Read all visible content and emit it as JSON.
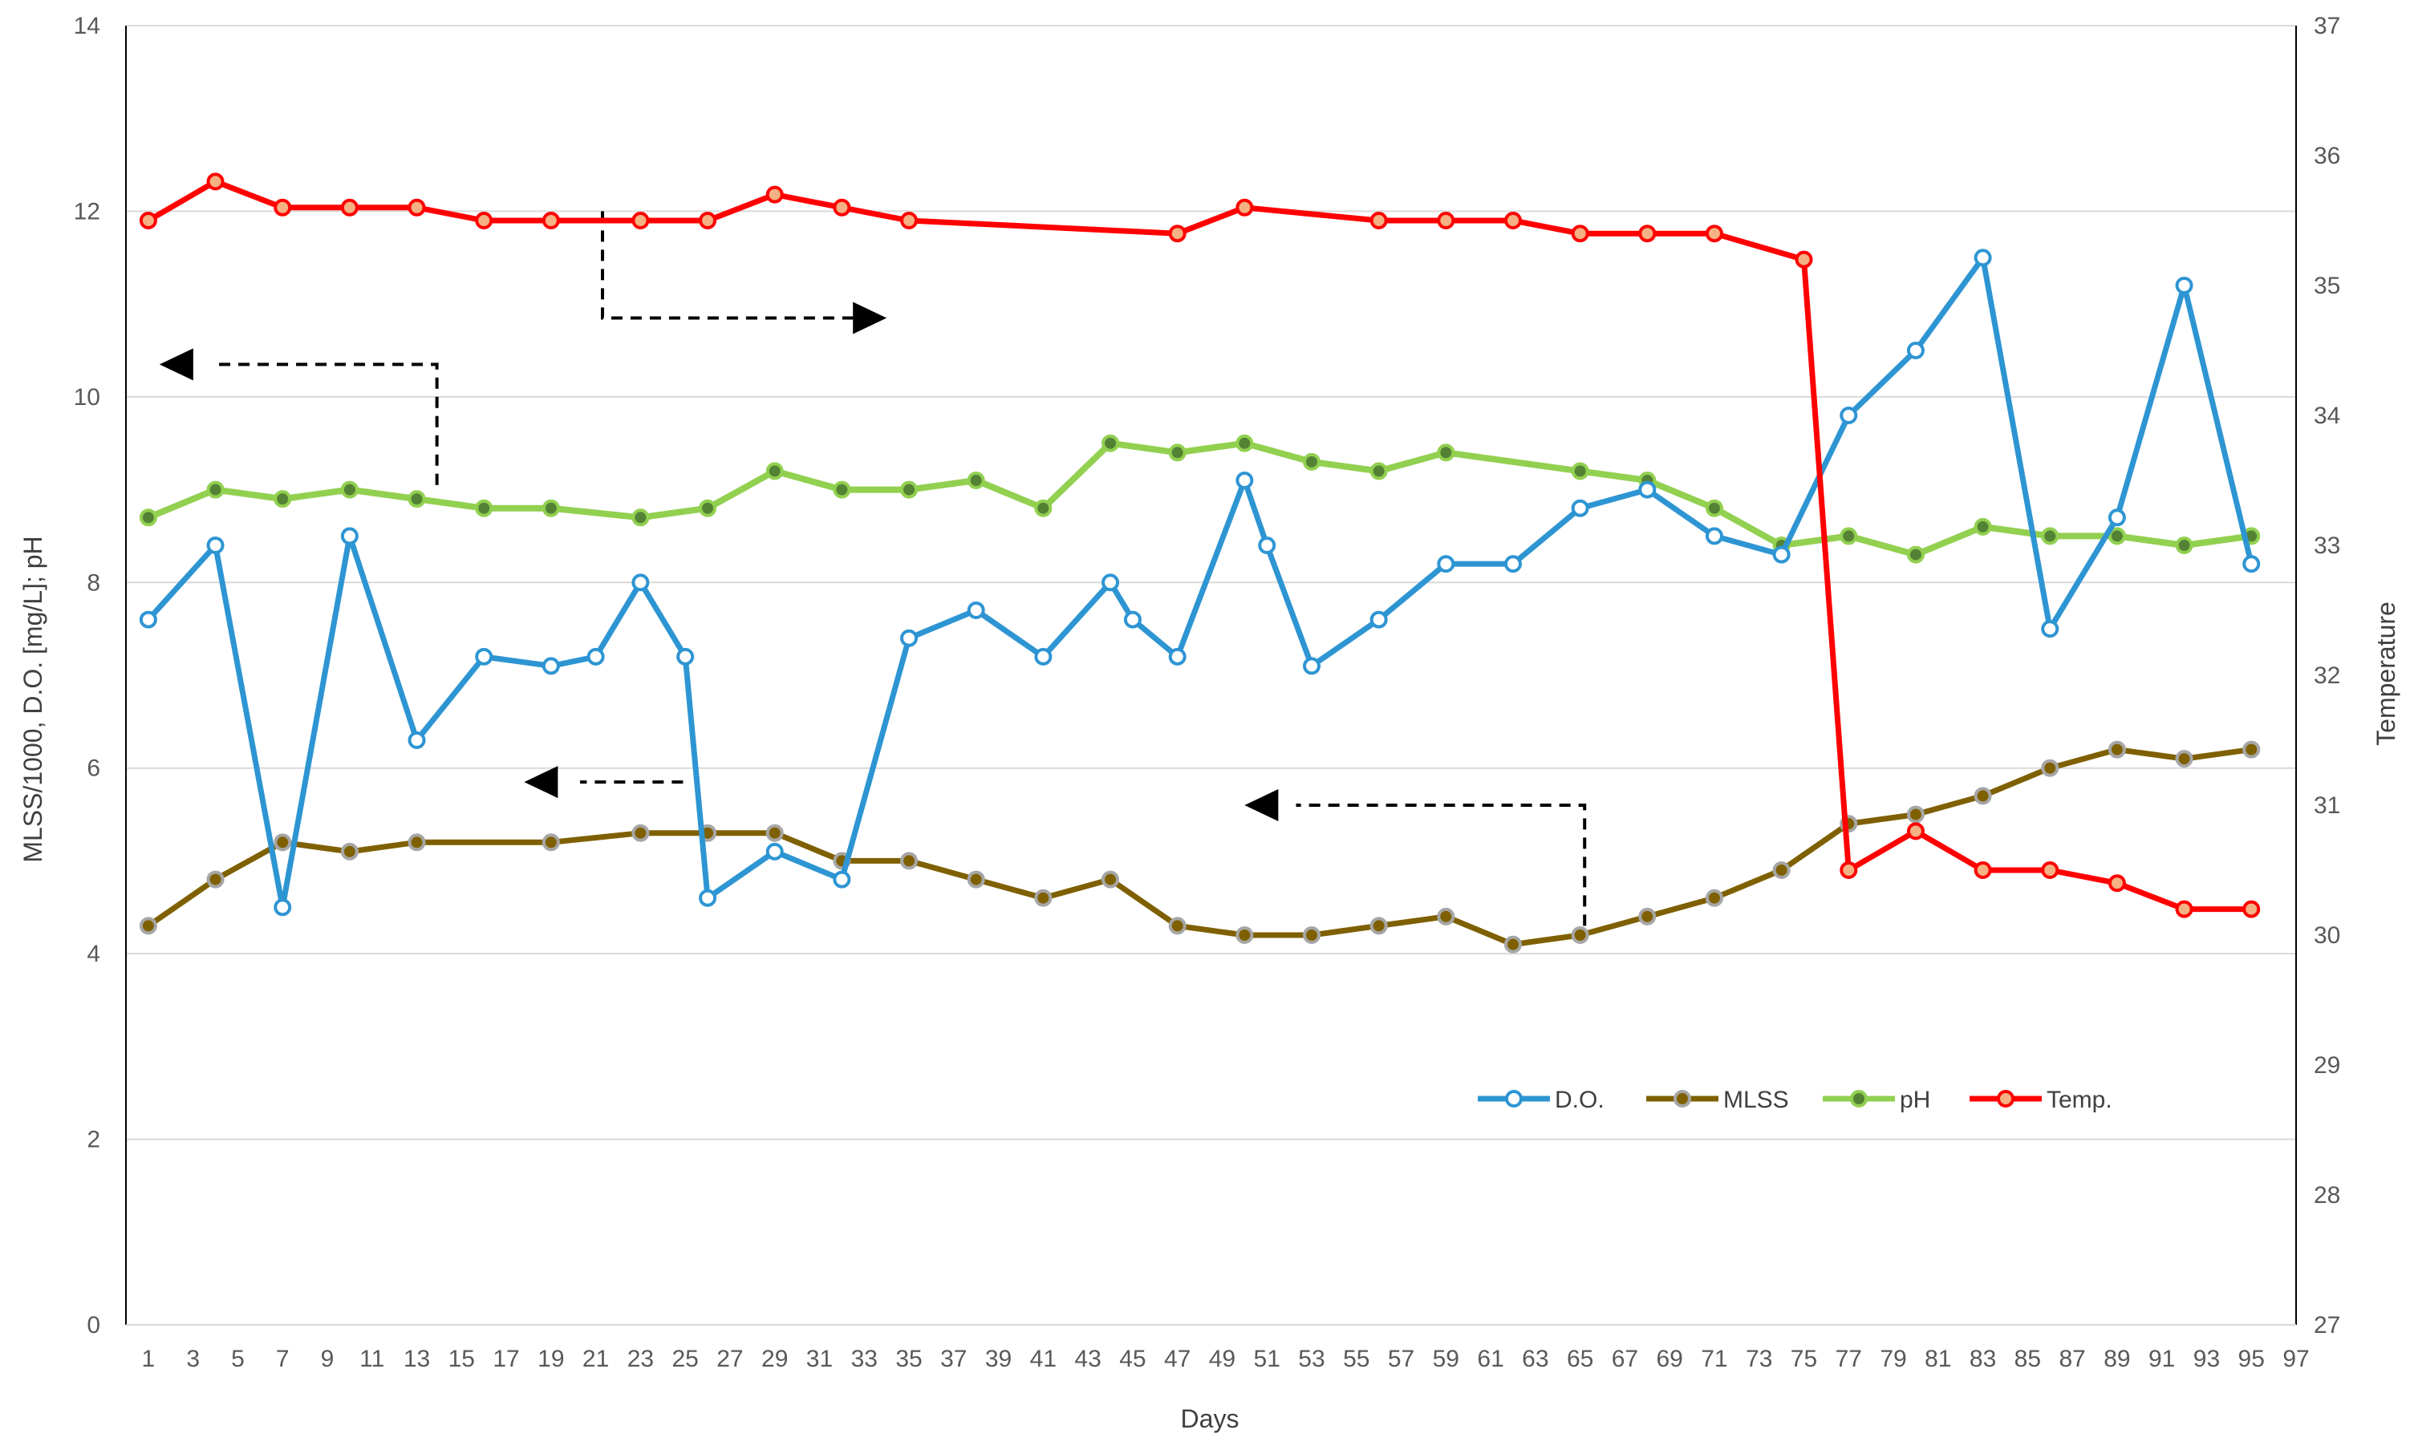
{
  "chart_data": {
    "type": "line",
    "title": "",
    "xlabel": "Days",
    "ylabel_left": "MLSS/1000, D.O. [mg/L]; pH",
    "ylabel_right": "Temperature",
    "xlim": [
      0,
      97
    ],
    "x_ticks": [
      1,
      3,
      5,
      7,
      9,
      11,
      13,
      15,
      17,
      19,
      21,
      23,
      25,
      27,
      29,
      31,
      33,
      35,
      37,
      39,
      41,
      43,
      45,
      47,
      49,
      51,
      53,
      55,
      57,
      59,
      61,
      63,
      65,
      67,
      69,
      71,
      73,
      75,
      77,
      79,
      81,
      83,
      85,
      87,
      89,
      91,
      93,
      95,
      97
    ],
    "ylim_left": [
      0,
      14
    ],
    "y_ticks_left": [
      0,
      2,
      4,
      6,
      8,
      10,
      12,
      14
    ],
    "ylim_right": [
      27,
      37
    ],
    "y_ticks_right": [
      27,
      28,
      29,
      30,
      31,
      32,
      33,
      34,
      35,
      36,
      37
    ],
    "grid": "horizontal",
    "legend_position": "bottom-right",
    "series": [
      {
        "name": "D.O.",
        "axis": "left",
        "color": "#2E95D3",
        "marker": "open-circle",
        "points": [
          [
            1,
            7.6
          ],
          [
            4,
            8.4
          ],
          [
            7,
            4.5
          ],
          [
            10,
            8.5
          ],
          [
            13,
            6.3
          ],
          [
            16,
            7.2
          ],
          [
            19,
            7.1
          ],
          [
            21,
            7.2
          ],
          [
            23,
            8.0
          ],
          [
            25,
            7.2
          ],
          [
            26,
            4.6
          ],
          [
            29,
            5.1
          ],
          [
            32,
            4.8
          ],
          [
            35,
            7.4
          ],
          [
            38,
            7.7
          ],
          [
            41,
            7.2
          ],
          [
            44,
            8.0
          ],
          [
            45,
            7.6
          ],
          [
            47,
            7.2
          ],
          [
            50,
            9.1
          ],
          [
            51,
            8.4
          ],
          [
            53,
            7.1
          ],
          [
            56,
            7.6
          ],
          [
            59,
            8.2
          ],
          [
            62,
            8.2
          ],
          [
            65,
            8.8
          ],
          [
            68,
            9.0
          ],
          [
            71,
            8.5
          ],
          [
            74,
            8.3
          ],
          [
            77,
            9.8
          ],
          [
            80,
            10.5
          ],
          [
            83,
            11.5
          ],
          [
            86,
            7.5
          ],
          [
            89,
            8.7
          ],
          [
            92,
            11.2
          ],
          [
            95,
            8.2
          ]
        ]
      },
      {
        "name": "MLSS",
        "axis": "left",
        "color": "#7F6000",
        "marker": "filled-circle",
        "points": [
          [
            1,
            4.3
          ],
          [
            4,
            4.8
          ],
          [
            7,
            5.2
          ],
          [
            10,
            5.1
          ],
          [
            13,
            5.2
          ],
          [
            19,
            5.2
          ],
          [
            23,
            5.3
          ],
          [
            26,
            5.3
          ],
          [
            29,
            5.3
          ],
          [
            32,
            5.0
          ],
          [
            35,
            5.0
          ],
          [
            38,
            4.8
          ],
          [
            41,
            4.6
          ],
          [
            44,
            4.8
          ],
          [
            47,
            4.3
          ],
          [
            50,
            4.2
          ],
          [
            53,
            4.2
          ],
          [
            56,
            4.3
          ],
          [
            59,
            4.4
          ],
          [
            62,
            4.1
          ],
          [
            65,
            4.2
          ],
          [
            68,
            4.4
          ],
          [
            71,
            4.6
          ],
          [
            74,
            4.9
          ],
          [
            77,
            5.4
          ],
          [
            80,
            5.5
          ],
          [
            83,
            5.7
          ],
          [
            86,
            6.0
          ],
          [
            89,
            6.2
          ],
          [
            92,
            6.1
          ],
          [
            95,
            6.2
          ]
        ]
      },
      {
        "name": "pH",
        "axis": "left",
        "color": "#92D050",
        "marker": "filled-circle",
        "points": [
          [
            1,
            8.7
          ],
          [
            4,
            9.0
          ],
          [
            7,
            8.9
          ],
          [
            10,
            9.0
          ],
          [
            13,
            8.9
          ],
          [
            16,
            8.8
          ],
          [
            19,
            8.8
          ],
          [
            23,
            8.7
          ],
          [
            26,
            8.8
          ],
          [
            29,
            9.2
          ],
          [
            32,
            9.0
          ],
          [
            35,
            9.0
          ],
          [
            38,
            9.1
          ],
          [
            41,
            8.8
          ],
          [
            44,
            9.5
          ],
          [
            47,
            9.4
          ],
          [
            50,
            9.5
          ],
          [
            53,
            9.3
          ],
          [
            56,
            9.2
          ],
          [
            59,
            9.4
          ],
          [
            65,
            9.2
          ],
          [
            68,
            9.1
          ],
          [
            71,
            8.8
          ],
          [
            74,
            8.4
          ],
          [
            77,
            8.5
          ],
          [
            80,
            8.3
          ],
          [
            83,
            8.6
          ],
          [
            86,
            8.5
          ],
          [
            89,
            8.5
          ],
          [
            92,
            8.4
          ],
          [
            95,
            8.5
          ]
        ]
      },
      {
        "name": "Temp.",
        "axis": "right",
        "color": "#FF0000",
        "marker": "filled-circle",
        "points": [
          [
            1,
            35.5
          ],
          [
            4,
            35.8
          ],
          [
            7,
            35.6
          ],
          [
            10,
            35.6
          ],
          [
            13,
            35.6
          ],
          [
            16,
            35.5
          ],
          [
            19,
            35.5
          ],
          [
            23,
            35.5
          ],
          [
            26,
            35.5
          ],
          [
            29,
            35.7
          ],
          [
            32,
            35.6
          ],
          [
            35,
            35.5
          ],
          [
            47,
            35.4
          ],
          [
            50,
            35.6
          ],
          [
            56,
            35.5
          ],
          [
            59,
            35.5
          ],
          [
            62,
            35.5
          ],
          [
            65,
            35.4
          ],
          [
            68,
            35.4
          ],
          [
            71,
            35.4
          ],
          [
            75,
            35.2
          ],
          [
            77,
            30.5
          ],
          [
            80,
            30.8
          ],
          [
            83,
            30.5
          ],
          [
            86,
            30.5
          ],
          [
            89,
            30.4
          ],
          [
            92,
            30.2
          ],
          [
            95,
            30.2
          ]
        ]
      }
    ]
  }
}
